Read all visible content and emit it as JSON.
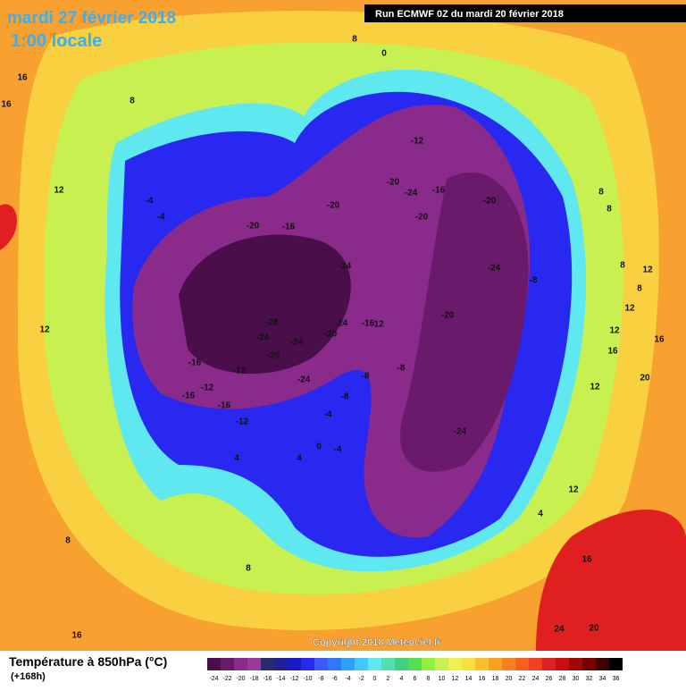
{
  "header": {
    "date": "mardi 27 février 2018",
    "time": "1:00 locale",
    "run": "Run ECMWF 0Z du mardi 20 février 2018"
  },
  "map": {
    "labels": [
      "8",
      "0",
      "16",
      "16",
      "8",
      "12",
      "-12",
      "-20",
      "-24",
      "-16",
      "-20",
      "-20",
      "-20",
      "-20",
      "-16",
      "-4",
      "-4",
      "-24",
      "-24",
      "-8",
      "-20",
      "-28",
      "-24",
      "-16",
      "12",
      "-24",
      "-24",
      "-20",
      "-20",
      "-16",
      "-12",
      "-12",
      "-16",
      "-24",
      "-8",
      "-8",
      "-8",
      "-16",
      "-4",
      "-12",
      "-24",
      "0",
      "-4",
      "4",
      "4",
      "8",
      "8",
      "12",
      "4",
      "16",
      "12",
      "8",
      "8",
      "12",
      "8",
      "8",
      "12",
      "12",
      "16",
      "16",
      "20",
      "12",
      "24",
      "20",
      "16"
    ]
  },
  "footer": {
    "copyright": "Copyright 2018 Meteociel.fr",
    "title": "Température à 850hPa (°C)",
    "lead": "(+168h)"
  },
  "scale": {
    "values": [
      -24,
      -22,
      -20,
      -18,
      -16,
      -14,
      -12,
      -10,
      -8,
      -6,
      -4,
      -2,
      0,
      2,
      4,
      6,
      8,
      10,
      12,
      14,
      16,
      18,
      20,
      22,
      24,
      26,
      28,
      30,
      32,
      34,
      36
    ],
    "colors": [
      "#4a0f4a",
      "#6a1a6a",
      "#8a2a8a",
      "#9a3a9a",
      "#2a2a70",
      "#20209a",
      "#1a1ac8",
      "#2828f0",
      "#3a5aff",
      "#2a7aff",
      "#30a0ff",
      "#40c8ff",
      "#60e8f0",
      "#50e0b0",
      "#40d080",
      "#50e050",
      "#90f040",
      "#c8f050",
      "#f0f050",
      "#f8e040",
      "#f8c030",
      "#f8a020",
      "#f88020",
      "#f86020",
      "#f04020",
      "#e02020",
      "#c81010",
      "#a00808",
      "#780000",
      "#400000",
      "#000000"
    ]
  }
}
